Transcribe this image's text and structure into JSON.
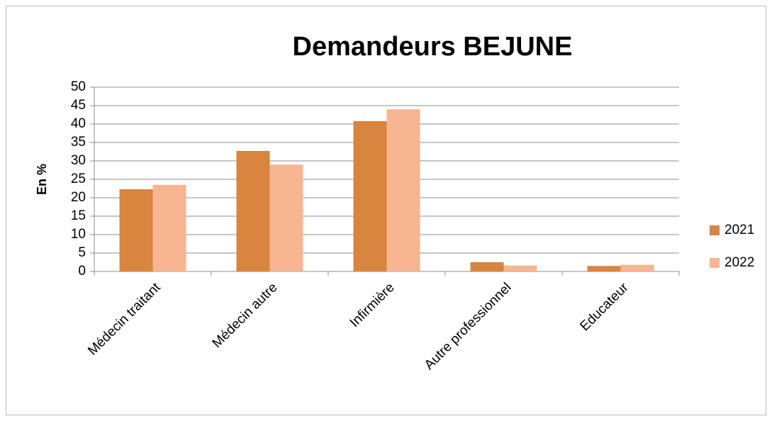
{
  "chart_data": {
    "type": "bar",
    "title": "Demandeurs BEJUNE",
    "y_label": "En %",
    "categories": [
      "Médecin traitant",
      "Médecin autre",
      "Infirmière",
      "Autre professionnel",
      "Educateur"
    ],
    "series": [
      {
        "name": "2021",
        "color": "#d9843f",
        "values": [
          22.3,
          32.7,
          40.8,
          2.5,
          1.5
        ]
      },
      {
        "name": "2022",
        "color": "#f8b592",
        "values": [
          23.5,
          29,
          44,
          1.6,
          1.8
        ]
      }
    ],
    "ylim": [
      0,
      50
    ],
    "yticks": [
      0,
      5,
      10,
      15,
      20,
      25,
      30,
      35,
      40,
      45,
      50
    ],
    "grid": true,
    "legend": "right"
  }
}
